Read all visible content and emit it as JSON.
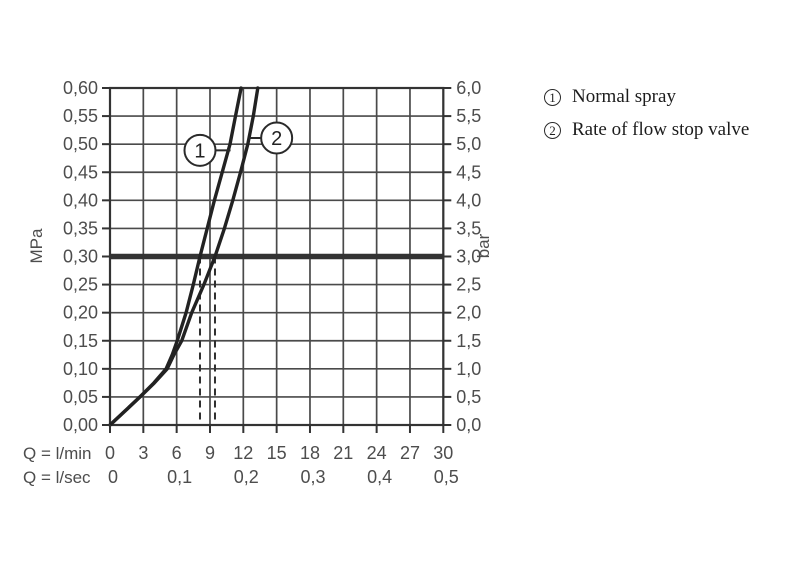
{
  "colors": {
    "background": "#ffffff",
    "grid": "#4a4a4a",
    "frame": "#333333",
    "curve": "#222222",
    "reference_line": "#333333",
    "drop_line": "#2f2f2f",
    "tick_text": "#4d4d4d",
    "annotation_stroke": "#2a2a2a",
    "legend_text": "#1c1c1c"
  },
  "legend": {
    "items": [
      {
        "symbol": "1"
      },
      {
        "symbol": "2"
      }
    ]
  },
  "chart_data": {
    "type": "line",
    "title": "",
    "grid": true,
    "x_axis": {
      "name": "Q = l/min",
      "range": [
        0,
        30
      ],
      "ticks": [
        {
          "v": 0,
          "label": "0"
        },
        {
          "v": 3,
          "label": "3"
        },
        {
          "v": 6,
          "label": "6"
        },
        {
          "v": 9,
          "label": "9"
        },
        {
          "v": 12,
          "label": "12"
        },
        {
          "v": 15,
          "label": "15"
        },
        {
          "v": 18,
          "label": "18"
        },
        {
          "v": 21,
          "label": "21"
        },
        {
          "v": 24,
          "label": "24"
        },
        {
          "v": 27,
          "label": "27"
        },
        {
          "v": 30,
          "label": "30"
        }
      ]
    },
    "x_axis_secondary": {
      "name": "Q = l/sec",
      "ticks": [
        {
          "v": 0,
          "label": "0"
        },
        {
          "v": 6,
          "label": "0,1"
        },
        {
          "v": 12,
          "label": "0,2"
        },
        {
          "v": 18,
          "label": "0,3"
        },
        {
          "v": 24,
          "label": "0,4"
        },
        {
          "v": 30,
          "label": "0,5"
        }
      ]
    },
    "y_axis_left": {
      "name": "MPa",
      "range": [
        0,
        0.6
      ],
      "ticks": [
        {
          "v": 0.0,
          "label": "0,00"
        },
        {
          "v": 0.05,
          "label": "0,05"
        },
        {
          "v": 0.1,
          "label": "0,10"
        },
        {
          "v": 0.15,
          "label": "0,15"
        },
        {
          "v": 0.2,
          "label": "0,20"
        },
        {
          "v": 0.25,
          "label": "0,25"
        },
        {
          "v": 0.3,
          "label": "0,30"
        },
        {
          "v": 0.35,
          "label": "0,35"
        },
        {
          "v": 0.4,
          "label": "0,40"
        },
        {
          "v": 0.45,
          "label": "0,45"
        },
        {
          "v": 0.5,
          "label": "0,50"
        },
        {
          "v": 0.55,
          "label": "0,55"
        },
        {
          "v": 0.6,
          "label": "0,60"
        }
      ]
    },
    "y_axis_right": {
      "name": "bar",
      "range": [
        0,
        6
      ],
      "ticks": [
        {
          "v": 0.0,
          "label": "0,0"
        },
        {
          "v": 0.5,
          "label": "0,5"
        },
        {
          "v": 1.0,
          "label": "1,0"
        },
        {
          "v": 1.5,
          "label": "1,5"
        },
        {
          "v": 2.0,
          "label": "2,0"
        },
        {
          "v": 2.5,
          "label": "2,5"
        },
        {
          "v": 3.0,
          "label": "3,0"
        },
        {
          "v": 3.5,
          "label": "3,5"
        },
        {
          "v": 4.0,
          "label": "4,0"
        },
        {
          "v": 4.5,
          "label": "4,5"
        },
        {
          "v": 5.0,
          "label": "5,0"
        },
        {
          "v": 5.5,
          "label": "5,5"
        },
        {
          "v": 6.0,
          "label": "6,0"
        }
      ]
    },
    "series": [
      {
        "id": "1",
        "name": "Normal spray",
        "points": [
          [
            0,
            0
          ],
          [
            1.35,
            0.025
          ],
          [
            2.7,
            0.05
          ],
          [
            3.95,
            0.075
          ],
          [
            5.05,
            0.1
          ],
          [
            5.6,
            0.125
          ],
          [
            6.05,
            0.15
          ],
          [
            6.85,
            0.2
          ],
          [
            7.5,
            0.25
          ],
          [
            8.1,
            0.3
          ],
          [
            8.75,
            0.35
          ],
          [
            9.4,
            0.4
          ],
          [
            10.1,
            0.45
          ],
          [
            10.8,
            0.5
          ],
          [
            11.3,
            0.55
          ],
          [
            11.8,
            0.6
          ]
        ]
      },
      {
        "id": "2",
        "name": "Rate of flow stop valve",
        "points": [
          [
            0,
            0
          ],
          [
            1.35,
            0.025
          ],
          [
            2.7,
            0.05
          ],
          [
            4.0,
            0.075
          ],
          [
            5.15,
            0.1
          ],
          [
            5.75,
            0.125
          ],
          [
            6.45,
            0.15
          ],
          [
            7.35,
            0.2
          ],
          [
            8.45,
            0.25
          ],
          [
            9.45,
            0.3
          ],
          [
            10.3,
            0.35
          ],
          [
            11.05,
            0.4
          ],
          [
            11.75,
            0.45
          ],
          [
            12.4,
            0.5
          ],
          [
            12.9,
            0.55
          ],
          [
            13.3,
            0.6
          ]
        ]
      }
    ],
    "reference_line": {
      "y": 0.3,
      "unit": "MPa"
    },
    "drop_lines": [
      {
        "x": 8.1
      },
      {
        "x": 9.45
      }
    ],
    "annotations": [
      {
        "id": "1",
        "x": 8.1,
        "y": 0.489,
        "attach_x": 10.85,
        "side": "right"
      },
      {
        "id": "2",
        "x": 15.0,
        "y": 0.511,
        "attach_x": 12.55,
        "side": "left"
      }
    ]
  }
}
